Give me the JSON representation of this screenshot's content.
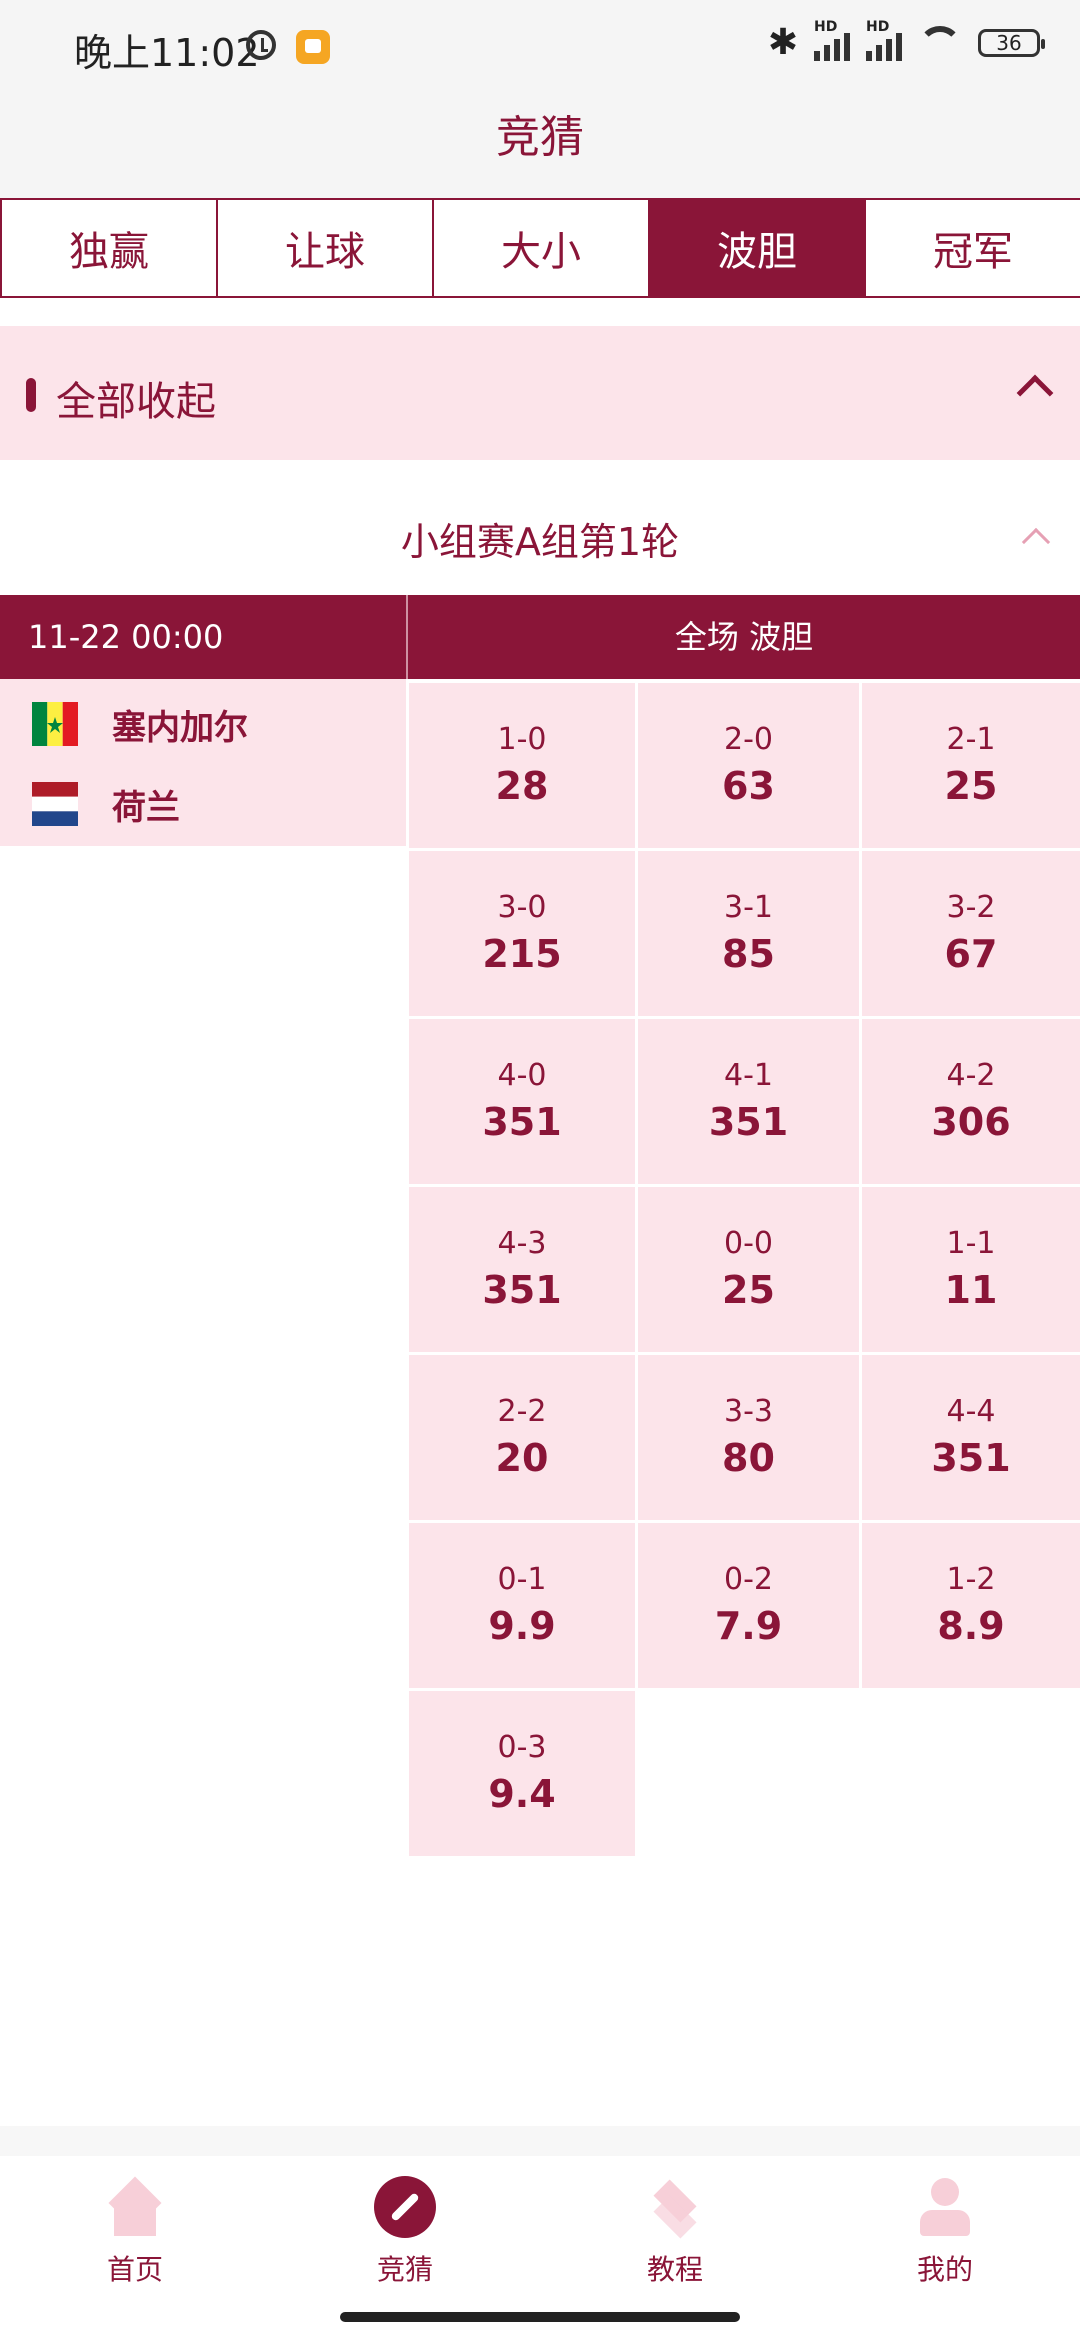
{
  "status_bar": {
    "time": "晚上11:02",
    "signal1_label": "HD",
    "signal2_label": "HD",
    "battery": "36"
  },
  "app_bar": {
    "title": "竞猜"
  },
  "tabs": [
    {
      "label": "独赢",
      "active": false
    },
    {
      "label": "让球",
      "active": false
    },
    {
      "label": "大小",
      "active": false
    },
    {
      "label": "波胆",
      "active": true
    },
    {
      "label": "冠军",
      "active": false
    }
  ],
  "collapse_all": {
    "label": "全部收起"
  },
  "group": {
    "title": "小组赛A组第1轮"
  },
  "match": {
    "time": "11-22 00:00",
    "market": "全场 波胆",
    "home_team": "塞内加尔",
    "away_team": "荷兰"
  },
  "odds": [
    {
      "score": "1-0",
      "odd": "28"
    },
    {
      "score": "2-0",
      "odd": "63"
    },
    {
      "score": "2-1",
      "odd": "25"
    },
    {
      "score": "3-0",
      "odd": "215"
    },
    {
      "score": "3-1",
      "odd": "85"
    },
    {
      "score": "3-2",
      "odd": "67"
    },
    {
      "score": "4-0",
      "odd": "351"
    },
    {
      "score": "4-1",
      "odd": "351"
    },
    {
      "score": "4-2",
      "odd": "306"
    },
    {
      "score": "4-3",
      "odd": "351"
    },
    {
      "score": "0-0",
      "odd": "25"
    },
    {
      "score": "1-1",
      "odd": "11"
    },
    {
      "score": "2-2",
      "odd": "20"
    },
    {
      "score": "3-3",
      "odd": "80"
    },
    {
      "score": "4-4",
      "odd": "351"
    },
    {
      "score": "0-1",
      "odd": "9.9"
    },
    {
      "score": "0-2",
      "odd": "7.9"
    },
    {
      "score": "1-2",
      "odd": "8.9"
    },
    {
      "score": "0-3",
      "odd": "9.4"
    }
  ],
  "bottom_nav": [
    {
      "label": "首页",
      "icon": "home-icon",
      "active": false
    },
    {
      "label": "竞猜",
      "icon": "compass-icon",
      "active": true
    },
    {
      "label": "教程",
      "icon": "layers-icon",
      "active": false
    },
    {
      "label": "我的",
      "icon": "user-icon",
      "active": false
    }
  ],
  "colors": {
    "brand": "#8a1538",
    "cell_bg": "#fce4ea"
  }
}
